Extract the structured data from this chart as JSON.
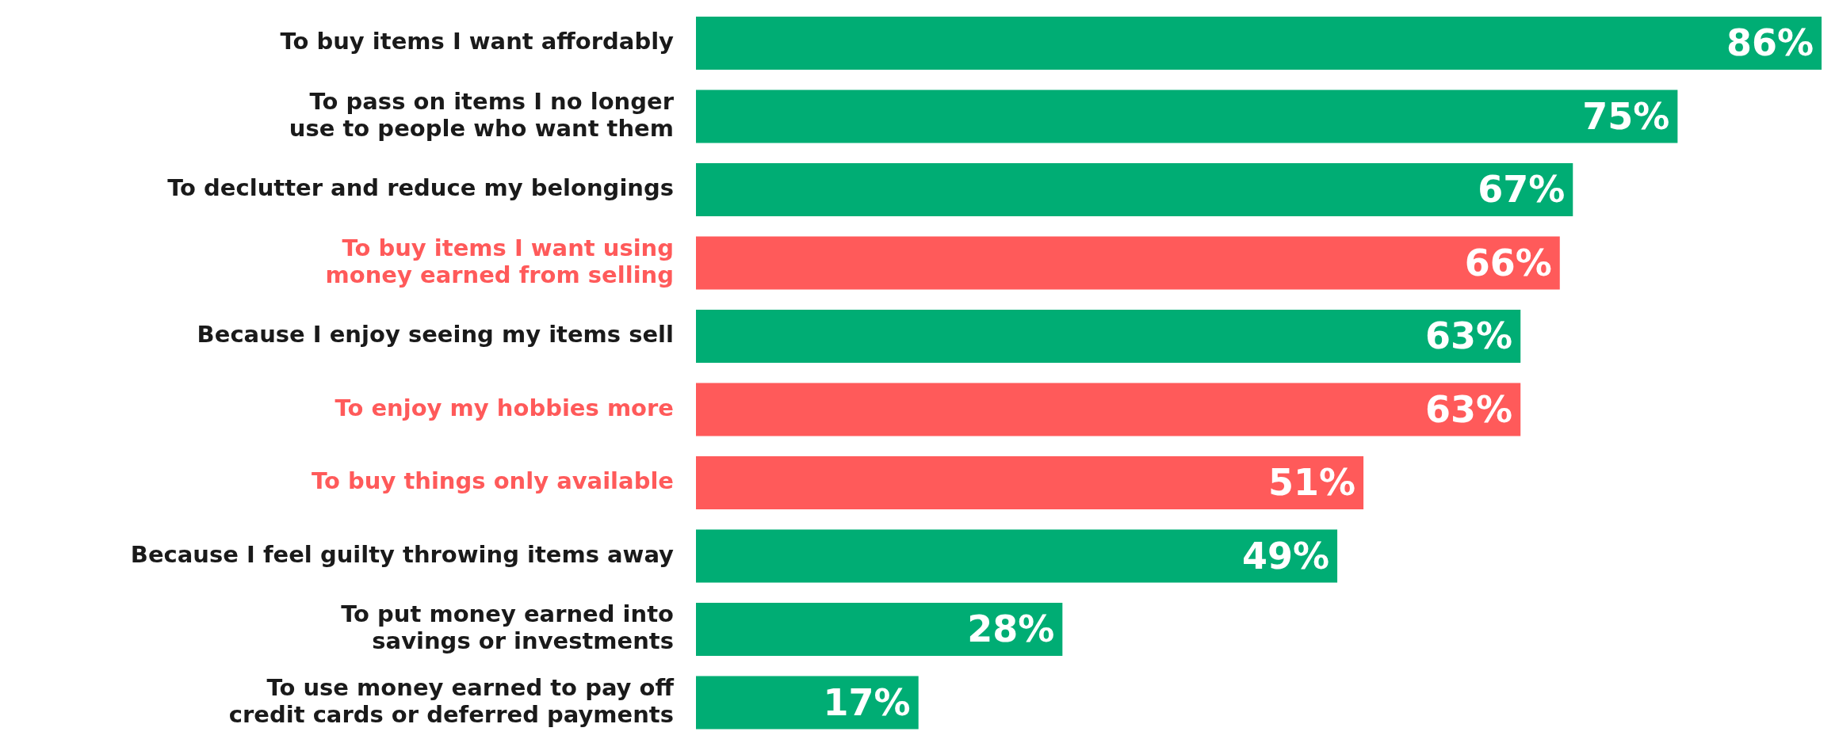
{
  "chart_data": {
    "type": "bar",
    "orientation": "horizontal",
    "data_labels": true,
    "categories": [
      "To buy items I want affordably",
      "To pass on items I no longer use to people who want them",
      "To declutter and reduce my belongings",
      "To buy items I want using money earned from selling",
      "Because I enjoy seeing my items sell",
      "To enjoy my hobbies more",
      "To buy things only available",
      "Because I feel guilty throwing items away",
      "To put money earned into savings or investments",
      "To use money earned to pay off credit cards or deferred payments"
    ],
    "values": [
      86,
      75,
      67,
      66,
      63,
      63,
      51,
      49,
      28,
      17
    ],
    "value_labels": [
      "86%",
      "75%",
      "67%",
      "66%",
      "63%",
      "63%",
      "51%",
      "49%",
      "28%",
      "17%"
    ],
    "colors": [
      "#00ad74",
      "#00ad74",
      "#00ad74",
      "#ff5a5a",
      "#00ad74",
      "#ff5a5a",
      "#ff5a5a",
      "#00ad74",
      "#00ad74",
      "#00ad74"
    ]
  }
}
